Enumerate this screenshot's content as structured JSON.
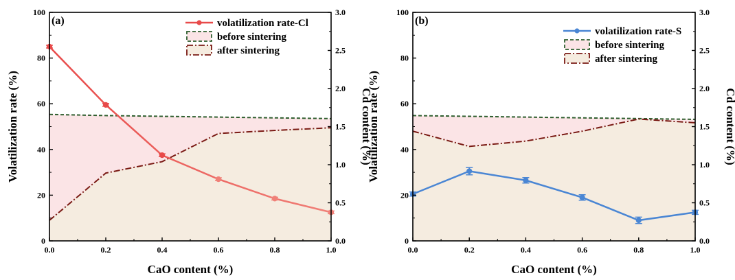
{
  "chart_data": [
    {
      "type": "line",
      "panel_label": "(a)",
      "xlabel": "CaO content (%)",
      "ylabel_left": "Volatilization rate (%)",
      "ylabel_right": "Cd content (%)",
      "x": [
        0.0,
        0.2,
        0.4,
        0.6,
        0.8,
        1.0
      ],
      "x_ticks": [
        "0.0",
        "0.2",
        "0.4",
        "0.6",
        "0.8",
        "1.0"
      ],
      "xlim": [
        0,
        1.0
      ],
      "ylim_left": [
        0,
        100
      ],
      "ylim_right": [
        0,
        3.0
      ],
      "y_ticks_left": [
        "0",
        "20",
        "40",
        "60",
        "80",
        "100"
      ],
      "y_ticks_right": [
        "0.0",
        "0.5",
        "1.0",
        "1.5",
        "2.0",
        "2.5",
        "3.0"
      ],
      "grid": false,
      "legend_position": "top-right",
      "series": [
        {
          "name": "volatilization rate-Cl",
          "axis": "left",
          "style": "solid-markers",
          "color": "#e84a4a",
          "color_end": "#f08078",
          "values": [
            85.0,
            59.5,
            37.5,
            27.0,
            18.5,
            12.5
          ],
          "error": [
            0.6,
            0.6,
            0.6,
            0.6,
            0.6,
            0.6
          ]
        },
        {
          "name": "before sintering",
          "axis": "right",
          "style": "dashed-fill",
          "color": "#2e5e2e",
          "fill": "#fbe4e6",
          "values": [
            1.66,
            1.645,
            1.635,
            1.625,
            1.615,
            1.605
          ]
        },
        {
          "name": "after sintering",
          "axis": "right",
          "style": "dashdot-fill",
          "color": "#7a1a14",
          "fill": "#f5ece0",
          "values": [
            0.27,
            0.89,
            1.04,
            1.41,
            1.45,
            1.485
          ]
        }
      ]
    },
    {
      "type": "line",
      "panel_label": "(b)",
      "xlabel": "CaO content (%)",
      "ylabel_left": "Volatilization rate (%)",
      "ylabel_right": "Cd content (%)",
      "x": [
        0.0,
        0.2,
        0.4,
        0.6,
        0.8,
        1.0
      ],
      "x_ticks": [
        "0.0",
        "0.2",
        "0.4",
        "0.6",
        "0.8",
        "1.0"
      ],
      "xlim": [
        0,
        1.0
      ],
      "ylim_left": [
        0,
        100
      ],
      "ylim_right": [
        0,
        3.0
      ],
      "y_ticks_left": [
        "0",
        "20",
        "40",
        "60",
        "80",
        "100"
      ],
      "y_ticks_right": [
        "0.0",
        "0.5",
        "1.0",
        "1.5",
        "2.0",
        "2.5",
        "3.0"
      ],
      "grid": false,
      "legend_position": "top-right",
      "series": [
        {
          "name": "volatilization rate-S",
          "axis": "left",
          "style": "solid-markers",
          "color": "#4a86d4",
          "color_end": "#4a86d4",
          "values": [
            20.5,
            30.5,
            26.5,
            19.0,
            9.0,
            12.5
          ],
          "error": [
            0.9,
            1.6,
            1.2,
            1.2,
            1.4,
            0.9
          ]
        },
        {
          "name": "before sintering",
          "axis": "right",
          "style": "dashed-fill",
          "color": "#2e5e2e",
          "fill": "#fbe4e6",
          "values": [
            1.645,
            1.635,
            1.625,
            1.615,
            1.605,
            1.595
          ]
        },
        {
          "name": "after sintering",
          "axis": "right",
          "style": "dashdot-fill",
          "color": "#7a1a14",
          "fill": "#f5ece0",
          "values": [
            1.44,
            1.24,
            1.31,
            1.44,
            1.6,
            1.55
          ]
        }
      ]
    }
  ]
}
